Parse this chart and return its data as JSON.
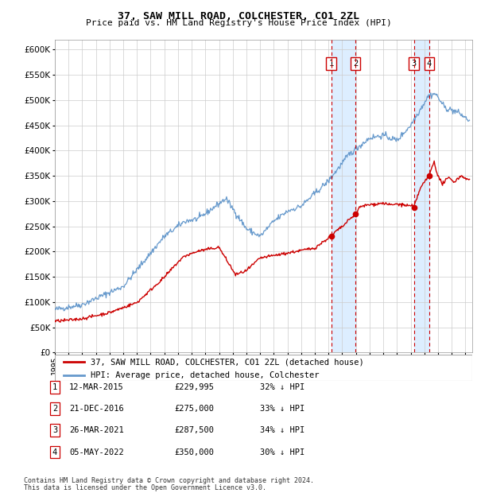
{
  "title": "37, SAW MILL ROAD, COLCHESTER, CO1 2ZL",
  "subtitle": "Price paid vs. HM Land Registry's House Price Index (HPI)",
  "red_label": "37, SAW MILL ROAD, COLCHESTER, CO1 2ZL (detached house)",
  "blue_label": "HPI: Average price, detached house, Colchester",
  "footer1": "Contains HM Land Registry data © Crown copyright and database right 2024.",
  "footer2": "This data is licensed under the Open Government Licence v3.0.",
  "sales": [
    {
      "num": 1,
      "date": "12-MAR-2015",
      "price": 229995,
      "pct": "32%",
      "year": 2015.19
    },
    {
      "num": 2,
      "date": "21-DEC-2016",
      "price": 275000,
      "pct": "33%",
      "year": 2016.97
    },
    {
      "num": 3,
      "date": "26-MAR-2021",
      "price": 287500,
      "pct": "34%",
      "year": 2021.23
    },
    {
      "num": 4,
      "date": "05-MAY-2022",
      "price": 350000,
      "pct": "30%",
      "year": 2022.34
    }
  ],
  "ylim": [
    0,
    620000
  ],
  "xlim": [
    1995,
    2025.5
  ],
  "yticks": [
    0,
    50000,
    100000,
    150000,
    200000,
    250000,
    300000,
    350000,
    400000,
    450000,
    500000,
    550000,
    600000
  ],
  "background_color": "#ffffff",
  "grid_color": "#cccccc",
  "red_color": "#cc0000",
  "blue_color": "#6699cc",
  "highlight_color": "#ddeeff"
}
